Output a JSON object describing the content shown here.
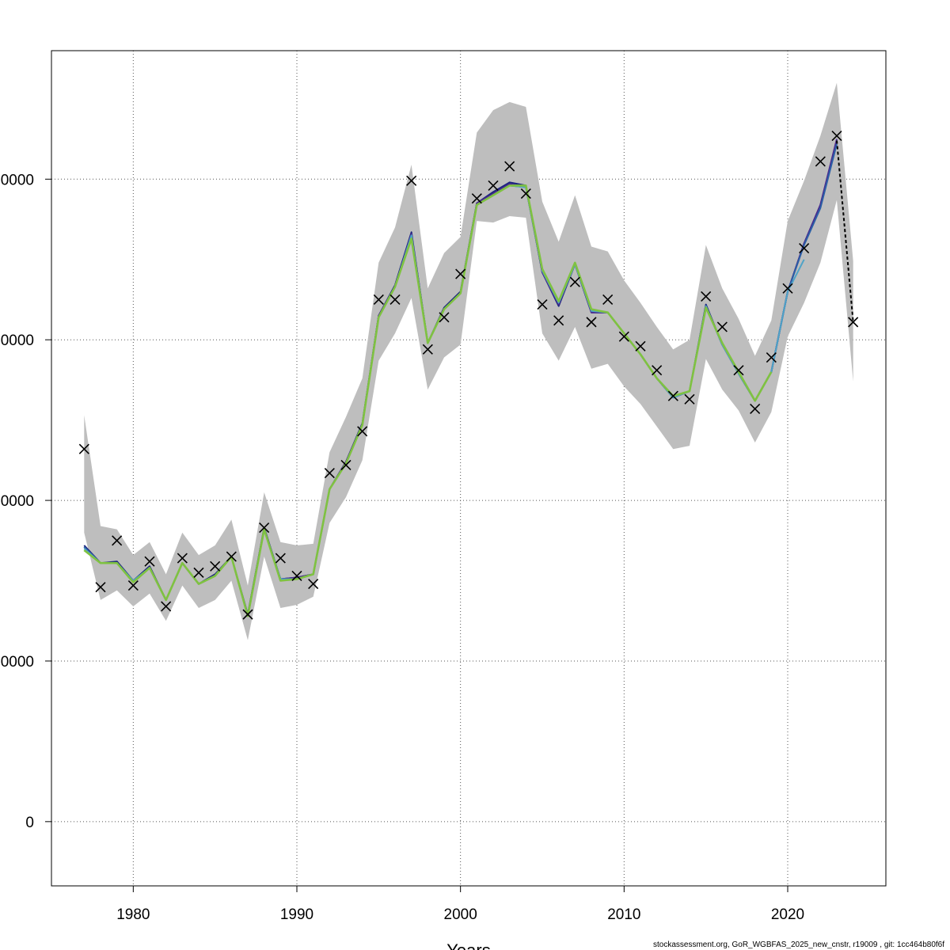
{
  "chart_data": {
    "type": "line",
    "xlabel": "Years",
    "ylabel": "",
    "xlim": [
      1975,
      2026
    ],
    "ylim": [
      -400000,
      4800000
    ],
    "x_ticks": [
      1980,
      1990,
      2000,
      2010,
      2020
    ],
    "x_tick_labels": [
      "1980",
      "1990",
      "2000",
      "2010",
      "2020"
    ],
    "y_ticks": [
      0,
      1000000,
      2000000,
      3000000,
      4000000
    ],
    "y_tick_labels": [
      "0",
      "0000",
      "0000",
      "0000",
      "0000"
    ],
    "grid": true,
    "years": [
      1977,
      1978,
      1979,
      1980,
      1981,
      1982,
      1983,
      1984,
      1985,
      1986,
      1987,
      1988,
      1989,
      1990,
      1991,
      1992,
      1993,
      1994,
      1995,
      1996,
      1997,
      1998,
      1999,
      2000,
      2001,
      2002,
      2003,
      2004,
      2005,
      2006,
      2007,
      2008,
      2009,
      2010,
      2011,
      2012,
      2013,
      2014,
      2015,
      2016,
      2017,
      2018,
      2019,
      2020,
      2021,
      2022,
      2023,
      2024
    ],
    "ci_lower": [
      1800000,
      1380000,
      1440000,
      1340000,
      1420000,
      1250000,
      1470000,
      1330000,
      1380000,
      1500000,
      1130000,
      1650000,
      1330000,
      1350000,
      1400000,
      1860000,
      2020000,
      2250000,
      2870000,
      3040000,
      3260000,
      2690000,
      2890000,
      2970000,
      3740000,
      3730000,
      3770000,
      3760000,
      3040000,
      2870000,
      3080000,
      2820000,
      2850000,
      2710000,
      2600000,
      2460000,
      2320000,
      2340000,
      2880000,
      2690000,
      2560000,
      2360000,
      2550000,
      3020000,
      3230000,
      3480000,
      3870000,
      2740000
    ],
    "ci_upper": [
      2530000,
      1840000,
      1820000,
      1660000,
      1740000,
      1540000,
      1800000,
      1660000,
      1720000,
      1880000,
      1470000,
      2050000,
      1740000,
      1720000,
      1730000,
      2300000,
      2520000,
      2760000,
      3480000,
      3700000,
      4090000,
      3320000,
      3540000,
      3640000,
      4290000,
      4430000,
      4480000,
      4450000,
      3860000,
      3610000,
      3900000,
      3580000,
      3550000,
      3370000,
      3230000,
      3080000,
      2940000,
      3000000,
      3590000,
      3320000,
      3130000,
      2900000,
      3120000,
      3740000,
      3990000,
      4270000,
      4600000,
      3490000
    ],
    "observations": [
      2320000,
      1460000,
      1750000,
      1470000,
      1620000,
      1340000,
      1640000,
      1550000,
      1590000,
      1650000,
      1290000,
      1830000,
      1640000,
      1530000,
      1480000,
      2170000,
      2220000,
      2430000,
      3250000,
      3250000,
      3990000,
      2940000,
      3140000,
      3410000,
      3880000,
      3960000,
      4080000,
      3910000,
      3220000,
      3120000,
      3360000,
      3110000,
      3250000,
      3020000,
      2960000,
      2810000,
      2650000,
      2630000,
      3270000,
      3080000,
      2810000,
      2570000,
      2890000,
      3320000,
      3570000,
      4110000,
      4270000,
      3110000
    ],
    "series": [
      {
        "color": "#1a237e",
        "values": [
          1720000,
          1610000,
          1620000,
          1500000,
          1590000,
          1380000,
          1610000,
          1480000,
          1540000,
          1650000,
          1290000,
          1830000,
          1510000,
          1520000,
          1540000,
          2070000,
          2240000,
          2480000,
          3150000,
          3340000,
          3670000,
          2980000,
          3200000,
          3300000,
          3850000,
          3920000,
          3980000,
          3960000,
          3420000,
          3210000,
          3470000,
          3170000,
          3170000,
          3040000,
          2910000,
          2760000,
          2640000,
          2680000,
          3220000,
          2970000,
          2790000,
          2620000,
          2800000,
          3300000,
          3600000,
          3840000,
          4240000
        ]
      },
      {
        "color": "#4a2a8e",
        "values": [
          1710000,
          1610000,
          1610000,
          1500000,
          1580000,
          1380000,
          1610000,
          1480000,
          1530000,
          1650000,
          1280000,
          1820000,
          1510000,
          1520000,
          1540000,
          2070000,
          2240000,
          2470000,
          3150000,
          3330000,
          3660000,
          2980000,
          3190000,
          3290000,
          3850000,
          3910000,
          3970000,
          3950000,
          3420000,
          3220000,
          3470000,
          3170000,
          3170000,
          3040000,
          2910000,
          2760000,
          2640000,
          2680000,
          3210000,
          2970000,
          2790000,
          2620000,
          2800000,
          3300000,
          3600000,
          3840000,
          4250000
        ]
      },
      {
        "color": "#2b5fa6",
        "values": [
          1710000,
          1610000,
          1610000,
          1500000,
          1580000,
          1380000,
          1610000,
          1480000,
          1530000,
          1650000,
          1280000,
          1820000,
          1510000,
          1510000,
          1540000,
          2070000,
          2230000,
          2470000,
          3140000,
          3330000,
          3650000,
          2980000,
          3190000,
          3290000,
          3840000,
          3900000,
          3960000,
          3950000,
          3430000,
          3230000,
          3470000,
          3180000,
          3170000,
          3040000,
          2910000,
          2760000,
          2640000,
          2680000,
          3210000,
          2970000,
          2790000,
          2620000,
          2800000,
          3300000,
          3590000,
          3820000,
          4220000
        ]
      },
      {
        "color": "#4fa3c7",
        "values": [
          1700000,
          1610000,
          1610000,
          1500000,
          1580000,
          1380000,
          1610000,
          1480000,
          1530000,
          1650000,
          1280000,
          1820000,
          1510000,
          1510000,
          1540000,
          2070000,
          2230000,
          2470000,
          3140000,
          3330000,
          3650000,
          2980000,
          3190000,
          3290000,
          3840000,
          3900000,
          3960000,
          3950000,
          3430000,
          3230000,
          3470000,
          3180000,
          3170000,
          3040000,
          2910000,
          2760000,
          2640000,
          2680000,
          3210000,
          2970000,
          2790000,
          2620000,
          2800000,
          3300000,
          3500000
        ]
      },
      {
        "color": "#7fc241",
        "values": [
          1690000,
          1610000,
          1610000,
          1490000,
          1580000,
          1380000,
          1610000,
          1480000,
          1530000,
          1650000,
          1280000,
          1820000,
          1500000,
          1510000,
          1540000,
          2070000,
          2230000,
          2470000,
          3140000,
          3330000,
          3630000,
          2980000,
          3190000,
          3290000,
          3840000,
          3900000,
          3960000,
          3960000,
          3440000,
          3240000,
          3480000,
          3190000,
          3170000,
          3040000,
          2910000,
          2760000,
          2650000,
          2680000,
          3200000,
          2980000,
          2800000,
          2620000,
          2800000
        ]
      }
    ],
    "final_estimate": {
      "color": "#000000",
      "values": [
        4240000,
        3110000
      ],
      "years": [
        2023,
        2024
      ]
    },
    "footer_text": "stockassessment.org, GoR_WGBFAS_2025_new_cnstr, r19009 , git: 1cc464b80f6f"
  }
}
